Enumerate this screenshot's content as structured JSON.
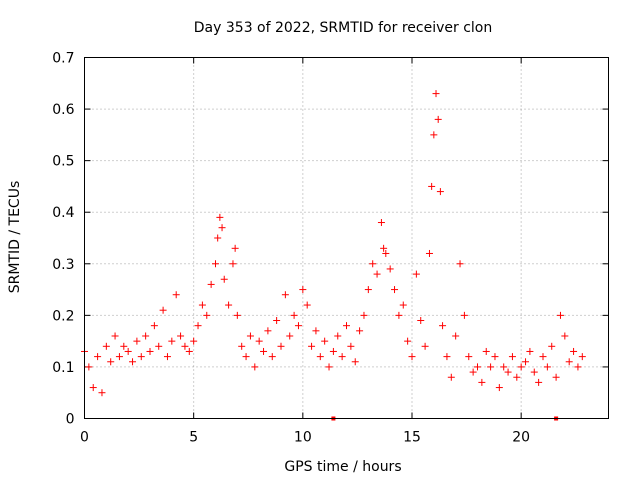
{
  "chart_data": {
    "type": "scatter",
    "title": "Day 353 of 2022, SRMTID for receiver clon",
    "xlabel": "GPS time / hours",
    "ylabel": "SRMTID / TECUs",
    "xlim": [
      0,
      24
    ],
    "ylim": [
      0,
      0.7
    ],
    "xticks": [
      0,
      5,
      10,
      15,
      20
    ],
    "yticks": [
      0,
      0.1,
      0.2,
      0.3,
      0.4,
      0.5,
      0.6,
      0.7
    ],
    "grid": true,
    "marker": "+",
    "color": "#ff0000",
    "series": [
      {
        "name": "SRMTID",
        "x": [
          0.0,
          0.2,
          0.4,
          0.6,
          0.8,
          1.0,
          1.2,
          1.4,
          1.6,
          1.8,
          2.0,
          2.2,
          2.4,
          2.6,
          2.8,
          3.0,
          3.2,
          3.4,
          3.6,
          3.8,
          4.0,
          4.2,
          4.4,
          4.6,
          4.8,
          5.0,
          5.2,
          5.4,
          5.6,
          5.8,
          6.0,
          6.1,
          6.2,
          6.3,
          6.4,
          6.6,
          6.8,
          6.9,
          7.0,
          7.2,
          7.4,
          7.6,
          7.8,
          8.0,
          8.2,
          8.4,
          8.6,
          8.8,
          9.0,
          9.2,
          9.4,
          9.6,
          9.8,
          10.0,
          10.2,
          10.4,
          10.6,
          10.8,
          11.0,
          11.2,
          11.4,
          11.6,
          11.8,
          12.0,
          12.2,
          12.4,
          12.6,
          12.8,
          13.0,
          13.2,
          13.4,
          13.6,
          13.7,
          13.8,
          14.0,
          14.2,
          14.4,
          14.6,
          14.8,
          15.0,
          15.2,
          15.4,
          15.6,
          15.8,
          15.9,
          16.0,
          16.1,
          16.2,
          16.3,
          16.4,
          16.6,
          16.8,
          17.0,
          17.2,
          17.4,
          17.6,
          17.8,
          18.0,
          18.2,
          18.4,
          18.6,
          18.8,
          19.0,
          19.2,
          19.4,
          19.6,
          19.8,
          20.0,
          20.2,
          20.4,
          20.6,
          20.8,
          21.0,
          21.2,
          21.4,
          21.6,
          21.8,
          22.0,
          22.2,
          22.4,
          22.6,
          22.8
        ],
        "y": [
          0.13,
          0.1,
          0.06,
          0.12,
          0.05,
          0.14,
          0.11,
          0.16,
          0.12,
          0.14,
          0.13,
          0.11,
          0.15,
          0.12,
          0.16,
          0.13,
          0.18,
          0.14,
          0.21,
          0.12,
          0.15,
          0.24,
          0.16,
          0.14,
          0.13,
          0.15,
          0.18,
          0.22,
          0.2,
          0.26,
          0.3,
          0.35,
          0.39,
          0.37,
          0.27,
          0.22,
          0.3,
          0.33,
          0.2,
          0.14,
          0.12,
          0.16,
          0.1,
          0.15,
          0.13,
          0.17,
          0.12,
          0.19,
          0.14,
          0.24,
          0.16,
          0.2,
          0.18,
          0.25,
          0.22,
          0.14,
          0.17,
          0.12,
          0.15,
          0.1,
          0.13,
          0.16,
          0.12,
          0.18,
          0.14,
          0.11,
          0.17,
          0.2,
          0.25,
          0.3,
          0.28,
          0.38,
          0.33,
          0.32,
          0.29,
          0.25,
          0.2,
          0.22,
          0.15,
          0.12,
          0.28,
          0.19,
          0.14,
          0.32,
          0.45,
          0.55,
          0.63,
          0.58,
          0.44,
          0.18,
          0.12,
          0.08,
          0.16,
          0.3,
          0.2,
          0.12,
          0.09,
          0.1,
          0.07,
          0.13,
          0.1,
          0.12,
          0.06,
          0.1,
          0.09,
          0.12,
          0.08,
          0.1,
          0.11,
          0.13,
          0.09,
          0.07,
          0.12,
          0.1,
          0.14,
          0.08,
          0.2,
          0.16,
          0.11,
          0.13,
          0.1,
          0.12
        ]
      }
    ],
    "gap_markers_x": [
      11.4,
      21.6
    ]
  }
}
